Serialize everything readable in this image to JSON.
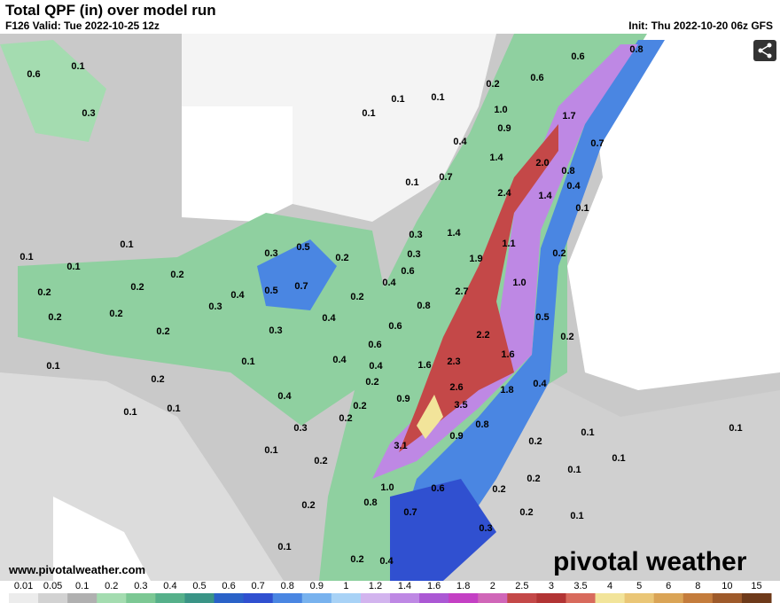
{
  "header": {
    "title": "Total QPF (in) over model run",
    "valid": "F126 Valid: Tue 2022-10-25 12z",
    "init": "Init: Thu 2022-10-20 06z GFS"
  },
  "footer": {
    "website": "www.pivotalweather.com",
    "logo": "pivotal weather"
  },
  "map": {
    "labels": [
      "0.6",
      "0.1",
      "0.3",
      "0.1",
      "0.1",
      "0.1",
      "0.2",
      "0.6",
      "0.6",
      "0.8",
      "1.0",
      "0.9",
      "1.7",
      "0.7",
      "0.4",
      "1.4",
      "2.0",
      "0.8",
      "0.4",
      "0.7",
      "0.1",
      "2.4",
      "1.4",
      "0.1",
      "0.3",
      "1.4",
      "1.1",
      "0.1",
      "0.5",
      "0.3",
      "0.2",
      "0.1",
      "0.1",
      "0.2",
      "0.3",
      "1.9",
      "0.2",
      "0.6",
      "0.4",
      "0.7",
      "0.5",
      "0.2",
      "0.2",
      "0.4",
      "1.0",
      "2.7",
      "0.2",
      "0.3",
      "0.8",
      "0.2",
      "0.2",
      "0.4",
      "0.5",
      "0.6",
      "0.3",
      "0.2",
      "2.2",
      "0.2",
      "0.6",
      "1.6",
      "0.1",
      "0.4",
      "0.1",
      "1.6",
      "2.3",
      "0.4",
      "0.2",
      "0.2",
      "2.6",
      "1.8",
      "0.4",
      "0.9",
      "0.4",
      "0.2",
      "0.1",
      "0.1",
      "3.5",
      "0.2",
      "0.8",
      "0.1",
      "0.1",
      "0.3",
      "0.9",
      "0.2",
      "3.1",
      "0.1",
      "0.1",
      "0.2",
      "0.1",
      "0.2",
      "1.0",
      "0.6",
      "0.2",
      "0.8",
      "0.2",
      "0.7",
      "0.2",
      "0.1",
      "0.3",
      "0.1",
      "0.2",
      "0.4"
    ]
  },
  "colorbar": {
    "labels": [
      "0.01",
      "0.05",
      "0.1",
      "0.2",
      "0.3",
      "0.4",
      "0.5",
      "0.6",
      "0.7",
      "0.8",
      "0.9",
      "1",
      "1.2",
      "1.4",
      "1.6",
      "1.8",
      "2",
      "2.5",
      "3",
      "3.5",
      "4",
      "5",
      "6",
      "8",
      "10",
      "15"
    ],
    "colors": [
      "#ececec",
      "#d2d2d2",
      "#b0b0b0",
      "#a4dcb0",
      "#7cc894",
      "#56b08a",
      "#3a9486",
      "#2a62c8",
      "#3050d0",
      "#4a86e2",
      "#78b2ee",
      "#a8d2f6",
      "#d2b4ee",
      "#be88e4",
      "#ab58d4",
      "#c440c4",
      "#d066b8",
      "#c44848",
      "#b23434",
      "#d86a5c",
      "#f2e49a",
      "#eac676",
      "#daa456",
      "#c47c3c",
      "#9e5a2a",
      "#6e3a1a"
    ]
  }
}
